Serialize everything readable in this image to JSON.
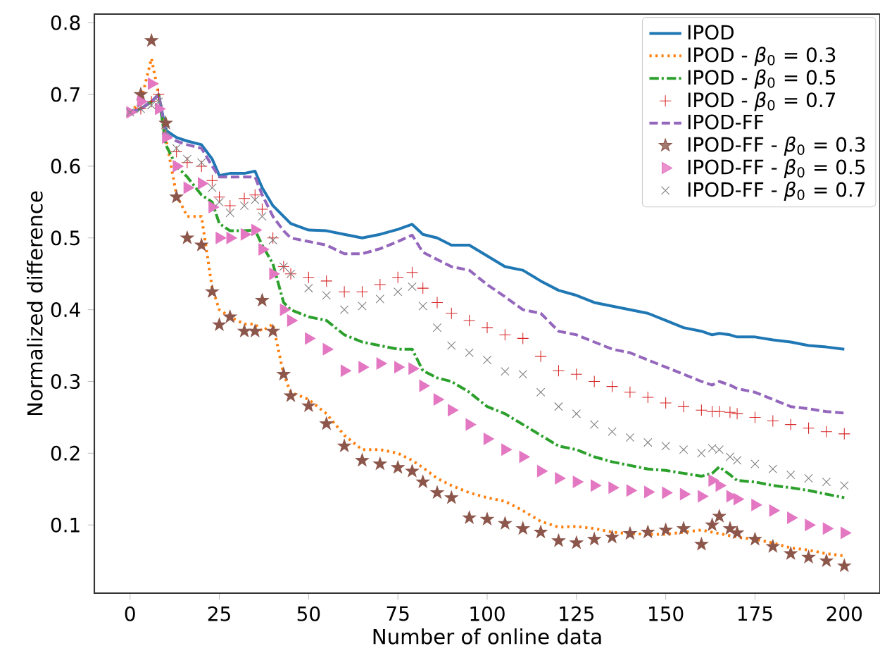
{
  "chart_data": {
    "type": "line",
    "xlabel": "Number of online data",
    "ylabel": "Normalized difference",
    "x": [
      0,
      3,
      6,
      8,
      10,
      13,
      16,
      20,
      23,
      25,
      28,
      32,
      35,
      37,
      40,
      43,
      45,
      50,
      55,
      60,
      65,
      70,
      75,
      79,
      82,
      86,
      90,
      95,
      100,
      105,
      110,
      115,
      120,
      125,
      130,
      135,
      140,
      145,
      150,
      155,
      160,
      163,
      165,
      168,
      170,
      175,
      180,
      185,
      190,
      195,
      200
    ],
    "series": [
      {
        "name": "IPOD",
        "color": "#1f77b4",
        "line_style": "solid",
        "marker": "none",
        "values": [
          0.675,
          0.68,
          0.69,
          0.7,
          0.65,
          0.64,
          0.635,
          0.63,
          0.61,
          0.587,
          0.59,
          0.59,
          0.593,
          0.57,
          0.545,
          0.53,
          0.52,
          0.511,
          0.51,
          0.505,
          0.5,
          0.505,
          0.512,
          0.519,
          0.505,
          0.5,
          0.49,
          0.49,
          0.475,
          0.46,
          0.455,
          0.44,
          0.427,
          0.42,
          0.41,
          0.405,
          0.4,
          0.395,
          0.385,
          0.375,
          0.37,
          0.365,
          0.367,
          0.365,
          0.362,
          0.362,
          0.358,
          0.355,
          0.35,
          0.348,
          0.345
        ]
      },
      {
        "name": "IPOD - *β*$_{0}$ = 0.3",
        "color": "#ff7f0e",
        "line_style": "dotted",
        "marker": "none",
        "values": [
          0.675,
          0.69,
          0.75,
          0.7,
          0.64,
          0.56,
          0.53,
          0.53,
          0.43,
          0.4,
          0.39,
          0.38,
          0.38,
          0.37,
          0.38,
          0.31,
          0.285,
          0.275,
          0.255,
          0.225,
          0.205,
          0.205,
          0.2,
          0.19,
          0.18,
          0.165,
          0.155,
          0.145,
          0.138,
          0.133,
          0.12,
          0.105,
          0.097,
          0.098,
          0.095,
          0.09,
          0.088,
          0.087,
          0.087,
          0.09,
          0.093,
          0.09,
          0.088,
          0.085,
          0.083,
          0.08,
          0.075,
          0.068,
          0.065,
          0.06,
          0.057
        ]
      },
      {
        "name": "IPOD - *β*$_{0}$ = 0.5",
        "color": "#2ca02c",
        "line_style": "dashdot",
        "marker": "none",
        "values": [
          0.675,
          0.68,
          0.69,
          0.7,
          0.63,
          0.6,
          0.585,
          0.56,
          0.55,
          0.52,
          0.51,
          0.51,
          0.511,
          0.49,
          0.464,
          0.41,
          0.4,
          0.39,
          0.385,
          0.365,
          0.355,
          0.35,
          0.345,
          0.345,
          0.315,
          0.305,
          0.3,
          0.285,
          0.265,
          0.255,
          0.24,
          0.225,
          0.21,
          0.205,
          0.195,
          0.188,
          0.183,
          0.178,
          0.176,
          0.172,
          0.168,
          0.172,
          0.181,
          0.17,
          0.162,
          0.16,
          0.155,
          0.152,
          0.148,
          0.143,
          0.138
        ]
      },
      {
        "name": "IPOD - *β*$_{0}$ = 0.7",
        "color": "#d62728",
        "type": "scatter",
        "marker": "plus",
        "values": [
          null,
          0.68,
          0.69,
          0.7,
          null,
          0.62,
          0.605,
          0.6,
          0.58,
          0.557,
          0.545,
          0.555,
          0.56,
          0.54,
          0.5,
          0.46,
          0.45,
          0.445,
          0.44,
          0.425,
          0.425,
          0.435,
          0.445,
          0.452,
          0.43,
          0.41,
          0.395,
          0.385,
          0.375,
          0.365,
          0.36,
          0.335,
          0.315,
          0.31,
          0.3,
          0.293,
          0.285,
          0.278,
          0.27,
          0.265,
          0.26,
          0.258,
          0.258,
          0.257,
          0.255,
          0.25,
          0.245,
          0.24,
          0.235,
          0.23,
          0.227
        ]
      },
      {
        "name": "IPOD-FF",
        "color": "#9467bd",
        "line_style": "dashed",
        "marker": "none",
        "values": [
          0.675,
          0.68,
          0.69,
          0.7,
          0.645,
          0.635,
          0.63,
          0.625,
          0.6,
          0.585,
          0.585,
          0.585,
          0.585,
          0.56,
          0.53,
          0.51,
          0.5,
          0.495,
          0.49,
          0.478,
          0.478,
          0.485,
          0.495,
          0.504,
          0.48,
          0.47,
          0.46,
          0.455,
          0.435,
          0.418,
          0.4,
          0.395,
          0.37,
          0.365,
          0.355,
          0.345,
          0.34,
          0.33,
          0.32,
          0.31,
          0.3,
          0.295,
          0.3,
          0.295,
          0.29,
          0.285,
          0.275,
          0.265,
          0.262,
          0.258,
          0.256
        ]
      },
      {
        "name": "IPOD-FF - *β*$_{0}$ = 0.3",
        "color": "#8c564b",
        "type": "scatter",
        "marker": "star",
        "values": [
          null,
          0.7,
          0.775,
          null,
          0.66,
          0.557,
          0.5,
          0.49,
          0.425,
          0.379,
          0.39,
          0.37,
          0.37,
          0.413,
          0.37,
          0.31,
          0.28,
          0.266,
          0.241,
          0.21,
          0.19,
          0.185,
          0.18,
          0.175,
          0.16,
          0.145,
          0.138,
          0.11,
          0.108,
          0.102,
          0.095,
          0.09,
          0.078,
          0.075,
          0.08,
          0.083,
          0.088,
          0.09,
          0.093,
          0.095,
          0.073,
          0.1,
          0.112,
          0.095,
          0.089,
          0.08,
          0.07,
          0.06,
          0.055,
          0.05,
          0.043
        ]
      },
      {
        "name": "IPOD-FF - *β*$_{0}$ = 0.5",
        "color": "#e377c2",
        "type": "scatter",
        "marker": "triangle",
        "values": [
          0.675,
          0.69,
          0.715,
          0.68,
          0.64,
          0.6,
          0.57,
          0.576,
          0.543,
          0.5,
          0.5,
          0.505,
          0.511,
          0.484,
          0.45,
          0.4,
          0.385,
          0.36,
          0.345,
          0.315,
          0.32,
          0.325,
          0.32,
          0.318,
          0.294,
          0.275,
          0.26,
          0.24,
          0.22,
          0.205,
          0.195,
          0.175,
          0.165,
          0.16,
          0.155,
          0.152,
          0.148,
          0.146,
          0.145,
          0.143,
          0.14,
          0.162,
          0.155,
          0.14,
          0.136,
          0.128,
          0.12,
          0.11,
          0.1,
          0.095,
          0.089
        ]
      },
      {
        "name": "IPOD-FF - *β*$_{0}$ = 0.7",
        "color": "#7f7f7f",
        "type": "scatter",
        "marker": "cross",
        "values": [
          0.675,
          0.68,
          0.685,
          0.69,
          0.65,
          0.625,
          0.61,
          0.605,
          0.57,
          0.55,
          0.535,
          0.545,
          0.553,
          0.53,
          0.497,
          0.46,
          0.45,
          0.43,
          0.42,
          0.4,
          0.405,
          0.415,
          0.425,
          0.432,
          0.405,
          0.375,
          0.35,
          0.34,
          0.33,
          0.314,
          0.31,
          0.285,
          0.265,
          0.255,
          0.24,
          0.23,
          0.222,
          0.215,
          0.21,
          0.205,
          0.2,
          0.207,
          0.205,
          0.195,
          0.19,
          0.185,
          0.178,
          0.17,
          0.165,
          0.16,
          0.155
        ]
      }
    ],
    "xlim": [
      -10,
      210
    ],
    "ylim": [
      0.005,
      0.812
    ],
    "xticks": [
      0,
      25,
      50,
      75,
      100,
      125,
      150,
      175,
      200
    ],
    "yticks": [
      0.1,
      0.2,
      0.3,
      0.4,
      0.5,
      0.6,
      0.7,
      0.8
    ],
    "grid": false,
    "legend": "top right"
  }
}
